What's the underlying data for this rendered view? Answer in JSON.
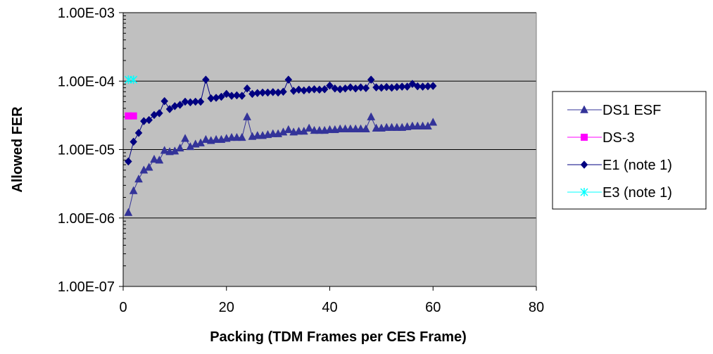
{
  "chart_data": {
    "type": "scatter",
    "xlabel": "Packing (TDM Frames per CES Frame)",
    "ylabel": "Allowed FER",
    "xlim": [
      0,
      80
    ],
    "ylim": [
      1e-07,
      0.001
    ],
    "yscale": "log",
    "x_ticks": [
      0,
      20,
      40,
      60,
      80
    ],
    "x_tick_labels": [
      "0",
      "20",
      "40",
      "60",
      "80"
    ],
    "y_ticks": [
      1e-07,
      1e-06,
      1e-05,
      0.0001,
      0.001
    ],
    "y_tick_labels": [
      "1.00E-07",
      "1.00E-06",
      "1.00E-05",
      "1.00E-04",
      "1.00E-03"
    ],
    "grid": "horizontal",
    "plot_background": "#c0c0c0",
    "legend_position": "right",
    "series": [
      {
        "name": "DS1 ESF",
        "marker": "triangle",
        "color": "#333399",
        "line": true,
        "x": [
          1,
          2,
          3,
          4,
          5,
          6,
          7,
          8,
          9,
          10,
          11,
          12,
          13,
          14,
          15,
          16,
          17,
          18,
          19,
          20,
          21,
          22,
          23,
          24,
          25,
          26,
          27,
          28,
          29,
          30,
          31,
          32,
          33,
          34,
          35,
          36,
          37,
          38,
          39,
          40,
          41,
          42,
          43,
          44,
          45,
          46,
          47,
          48,
          49,
          50,
          51,
          52,
          53,
          54,
          55,
          56,
          57,
          58,
          59,
          60
        ],
        "y": [
          1.2e-06,
          2.5e-06,
          3.7e-06,
          5e-06,
          5.5e-06,
          7.2e-06,
          7e-06,
          9.7e-06,
          9.3e-06,
          9.5e-06,
          1.05e-05,
          1.45e-05,
          1.1e-05,
          1.2e-05,
          1.25e-05,
          1.4e-05,
          1.35e-05,
          1.4e-05,
          1.4e-05,
          1.45e-05,
          1.5e-05,
          1.5e-05,
          1.5e-05,
          3e-05,
          1.55e-05,
          1.6e-05,
          1.6e-05,
          1.65e-05,
          1.7e-05,
          1.7e-05,
          1.8e-05,
          1.95e-05,
          1.8e-05,
          1.85e-05,
          1.85e-05,
          2.05e-05,
          1.9e-05,
          1.9e-05,
          1.9e-05,
          1.95e-05,
          1.95e-05,
          2e-05,
          2e-05,
          2e-05,
          2e-05,
          2e-05,
          2e-05,
          3e-05,
          2.05e-05,
          2.05e-05,
          2.1e-05,
          2.1e-05,
          2.1e-05,
          2.1e-05,
          2.15e-05,
          2.2e-05,
          2.2e-05,
          2.2e-05,
          2.2e-05,
          2.5e-05
        ]
      },
      {
        "name": "DS-3",
        "marker": "square",
        "color": "#ff00ff",
        "line": true,
        "x": [
          1,
          2
        ],
        "y": [
          3.1e-05,
          3.1e-05
        ]
      },
      {
        "name": "E1 (note 1)",
        "marker": "diamond",
        "color": "#000080",
        "line": true,
        "x": [
          1,
          2,
          3,
          4,
          5,
          6,
          7,
          8,
          9,
          10,
          11,
          12,
          13,
          14,
          15,
          16,
          17,
          18,
          19,
          20,
          21,
          22,
          23,
          24,
          25,
          26,
          27,
          28,
          29,
          30,
          31,
          32,
          33,
          34,
          35,
          36,
          37,
          38,
          39,
          40,
          41,
          42,
          43,
          44,
          45,
          46,
          47,
          48,
          49,
          50,
          51,
          52,
          53,
          54,
          55,
          56,
          57,
          58,
          59,
          60
        ],
        "y": [
          6.7e-06,
          1.3e-05,
          1.75e-05,
          2.6e-05,
          2.7e-05,
          3.2e-05,
          3.4e-05,
          5.1e-05,
          3.9e-05,
          4.3e-05,
          4.5e-05,
          5e-05,
          4.9e-05,
          5e-05,
          5e-05,
          0.000105,
          5.6e-05,
          5.7e-05,
          5.9e-05,
          6.5e-05,
          6.1e-05,
          6.2e-05,
          6.1e-05,
          7.8e-05,
          6.5e-05,
          6.7e-05,
          6.8e-05,
          6.8e-05,
          6.9e-05,
          6.8e-05,
          7e-05,
          0.000105,
          7.2e-05,
          7.5e-05,
          7.3e-05,
          7.5e-05,
          7.6e-05,
          7.5e-05,
          7.6e-05,
          8.6e-05,
          7.8e-05,
          7.6e-05,
          7.8e-05,
          8.1e-05,
          7.8e-05,
          8.1e-05,
          7.9e-05,
          0.000105,
          8.1e-05,
          8e-05,
          8.2e-05,
          8e-05,
          8.2e-05,
          8.3e-05,
          8.3e-05,
          9.1e-05,
          8.4e-05,
          8.3e-05,
          8.4e-05,
          8.5e-05
        ]
      },
      {
        "name": "E3 (note 1)",
        "marker": "star",
        "color": "#00ffff",
        "line": true,
        "x": [
          1,
          2
        ],
        "y": [
          0.000105,
          0.000105
        ]
      }
    ]
  }
}
